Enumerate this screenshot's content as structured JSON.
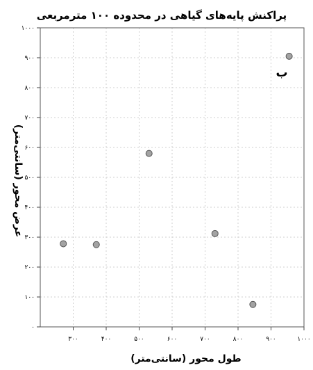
{
  "chart_data": {
    "type": "scatter",
    "title": "پراکنش پایه‌های گیاهی در محدوده ۱۰۰ مترمربعی",
    "panel_label": "ب",
    "xlabel": "طول محور (سانتی‌متر)",
    "ylabel": "عرض محور (سانتی‌متر)",
    "xlim": [
      200,
      1000
    ],
    "ylim": [
      0,
      1000
    ],
    "x_ticks": [
      300,
      400,
      500,
      600,
      700,
      800,
      900,
      1000
    ],
    "x_tick_labels": [
      "۳۰۰",
      "۴۰۰",
      "۵۰۰",
      "۶۰۰",
      "۷۰۰",
      "۸۰۰",
      "۹۰۰",
      "۱۰۰۰"
    ],
    "y_ticks": [
      0,
      100,
      200,
      300,
      400,
      500,
      600,
      700,
      800,
      900,
      1000
    ],
    "y_tick_labels": [
      "۰",
      "۱۰۰",
      "۲۰۰",
      "۳۰۰",
      "۴۰۰",
      "۵۰۰",
      "۶۰۰",
      "۷۰۰",
      "۸۰۰",
      "۹۰۰",
      "۱۰۰۰"
    ],
    "grid": true,
    "points": [
      {
        "x": 270,
        "y": 278
      },
      {
        "x": 370,
        "y": 275
      },
      {
        "x": 530,
        "y": 580
      },
      {
        "x": 730,
        "y": 312
      },
      {
        "x": 845,
        "y": 75
      },
      {
        "x": 955,
        "y": 905
      }
    ]
  }
}
